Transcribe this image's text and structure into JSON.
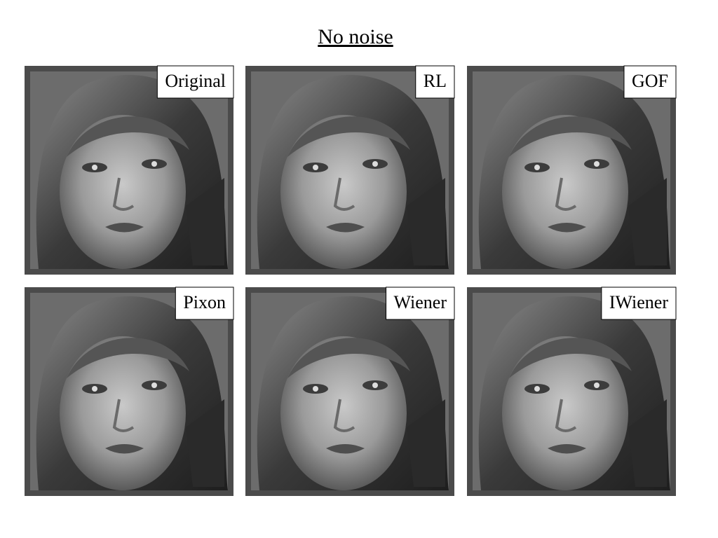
{
  "title": "No noise",
  "panels": [
    {
      "label": "Original"
    },
    {
      "label": "RL"
    },
    {
      "label": "GOF"
    },
    {
      "label": "Pixon"
    },
    {
      "label": "Wiener"
    },
    {
      "label": "IWiener"
    }
  ]
}
